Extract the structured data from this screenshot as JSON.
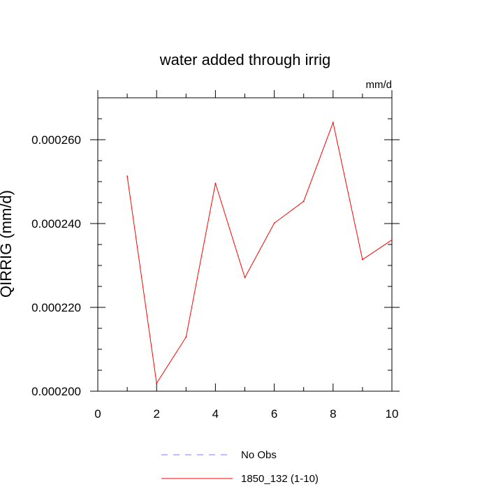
{
  "chart_data": {
    "type": "line",
    "title": "water added through irrig",
    "units_label": "mm/d",
    "xlabel": "",
    "ylabel": "QIRRIG  (mm/d)",
    "xlim": [
      0,
      10
    ],
    "ylim": [
      0.0002,
      0.00027
    ],
    "x_ticks": [
      0,
      2,
      4,
      6,
      8,
      10
    ],
    "x_tick_labels": [
      "0",
      "2",
      "4",
      "6",
      "8",
      "10"
    ],
    "y_ticks": [
      0.0002,
      0.00022,
      0.00024,
      0.00026
    ],
    "y_tick_labels": [
      "0.000200",
      "0.000220",
      "0.000240",
      "0.000260"
    ],
    "grid": false,
    "legend_position": "bottom",
    "series": [
      {
        "name": "1850_132 (1-10)",
        "color": "#ff0000",
        "dash": "solid",
        "x": [
          1,
          2,
          3,
          4,
          5,
          6,
          7,
          8,
          9,
          10
        ],
        "values": [
          0.0002513,
          0.0002019,
          0.0002129,
          0.0002496,
          0.0002271,
          0.0002401,
          0.0002453,
          0.0002641,
          0.0002314,
          0.0002361
        ]
      }
    ],
    "legend": [
      {
        "label": "No Obs",
        "color": "#7b7bff",
        "dash": "dashed"
      },
      {
        "label": "1850_132 (1-10)",
        "color": "#ff0000",
        "dash": "solid"
      }
    ]
  }
}
